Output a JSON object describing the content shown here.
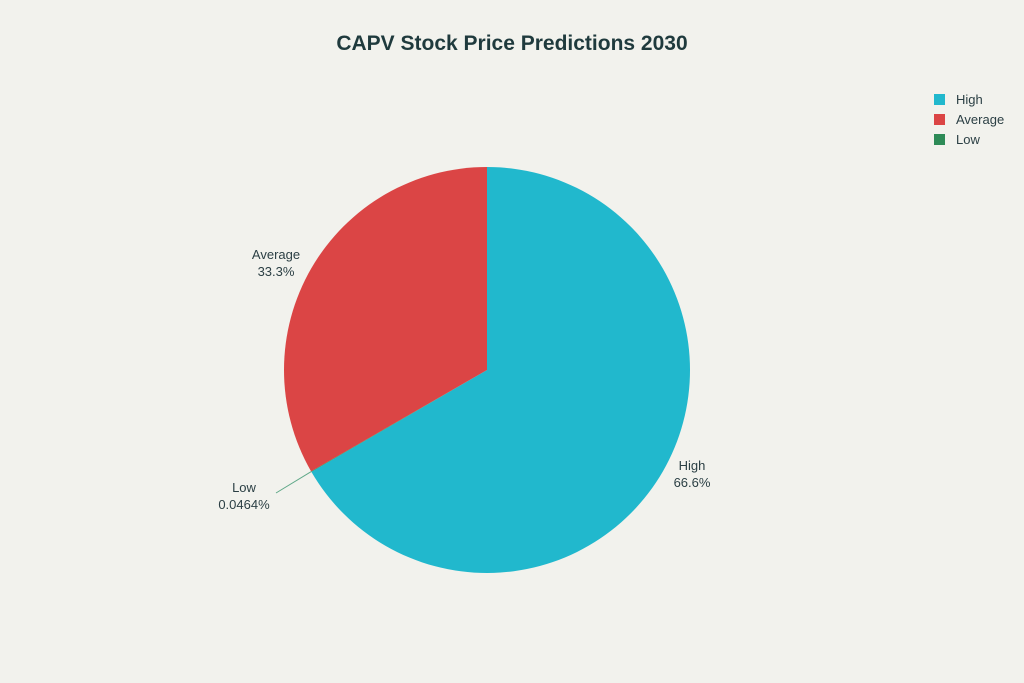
{
  "chart_data": {
    "type": "pie",
    "title": "CAPV Stock Price Predictions 2030",
    "categories": [
      "High",
      "Average",
      "Low"
    ],
    "values": [
      66.6,
      33.3,
      0.0464
    ],
    "value_labels": [
      "66.6%",
      "33.3%",
      "0.0464%"
    ],
    "colors": [
      "#21b8cd",
      "#db4545",
      "#2e8b57"
    ],
    "slice_order": [
      "High",
      "Low",
      "Average"
    ],
    "legend": {
      "position": "top-right",
      "entries": [
        "High",
        "Average",
        "Low"
      ]
    }
  }
}
